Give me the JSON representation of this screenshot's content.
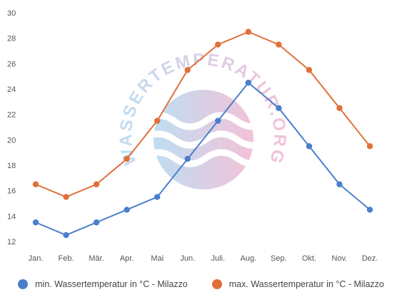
{
  "chart_data": {
    "type": "line",
    "categories": [
      "Jan.",
      "Feb.",
      "Mär.",
      "Apr.",
      "Mai",
      "Jun.",
      "Juli.",
      "Aug.",
      "Sep.",
      "Okt.",
      "Nov.",
      "Dez."
    ],
    "series": [
      {
        "name": "min. Wassertemperatur in °C - Milazzo",
        "color": "#4a7fcb",
        "values": [
          13.5,
          12.5,
          13.5,
          14.5,
          15.5,
          18.5,
          21.5,
          24.5,
          22.5,
          19.5,
          16.5,
          14.5
        ]
      },
      {
        "name": "max. Wassertemperatur in °C - Milazzo",
        "color": "#e0703a",
        "values": [
          16.5,
          15.5,
          16.5,
          18.5,
          21.5,
          25.5,
          27.5,
          28.5,
          27.5,
          25.5,
          22.5,
          19.5
        ]
      }
    ],
    "yticks": [
      12,
      14,
      16,
      18,
      20,
      22,
      24,
      26,
      28,
      30
    ],
    "ylim": [
      12,
      30
    ],
    "grid": false,
    "legend_position": "bottom"
  },
  "watermark": {
    "text": "WASSERTEMPERATUR.ORG"
  }
}
